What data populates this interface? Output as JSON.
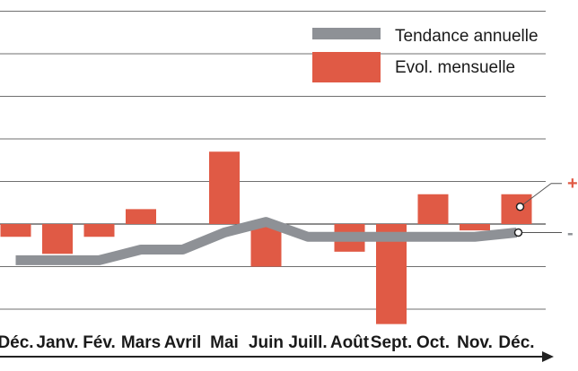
{
  "chart_data": {
    "type": "bar",
    "categories": [
      "Déc.",
      "Janv.",
      "Fév.",
      "Mars",
      "Avril",
      "Mai",
      "Juin",
      "Juill.",
      "Août",
      "Sept.",
      "Oct.",
      "Nov.",
      "Déc."
    ],
    "series": [
      {
        "name": "Evol. mensuelle",
        "kind": "bar",
        "color": "#e05a45",
        "values": [
          -0.3,
          -0.7,
          -0.3,
          0.35,
          0,
          1.7,
          -1.0,
          0,
          -0.65,
          -2.35,
          0.7,
          -0.15,
          0.7
        ]
      },
      {
        "name": "Tendance annuelle",
        "kind": "line",
        "color": "#8e9196",
        "values": [
          -0.85,
          -0.85,
          -0.85,
          -0.6,
          -0.6,
          -0.2,
          0.05,
          -0.3,
          -0.3,
          -0.3,
          -0.3,
          -0.3,
          -0.2
        ]
      }
    ],
    "ylim": [
      -2.5,
      5.0
    ],
    "grid": true,
    "legend": "top-right",
    "side_labels": [
      "+",
      "- ("
    ]
  }
}
